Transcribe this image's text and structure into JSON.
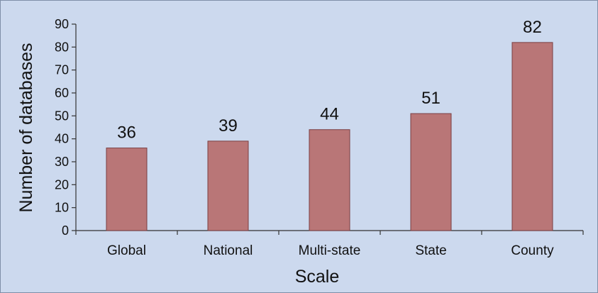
{
  "chart_data": {
    "type": "bar",
    "categories": [
      "Global",
      "National",
      "Multi-state",
      "State",
      "County"
    ],
    "values": [
      36,
      39,
      44,
      51,
      82
    ],
    "data_labels": [
      "36",
      "39",
      "44",
      "51",
      "82"
    ],
    "xlabel": "Scale",
    "ylabel": "Number of databases",
    "ylim": [
      0,
      90
    ],
    "yticks": [
      0,
      10,
      20,
      30,
      40,
      50,
      60,
      70,
      80,
      90
    ],
    "grid": false,
    "legend": "none",
    "colors": {
      "background": "#ccd9ee",
      "bar_fill": "#b97677",
      "bar_stroke": "#7a3f42",
      "axis": "#333333"
    }
  }
}
